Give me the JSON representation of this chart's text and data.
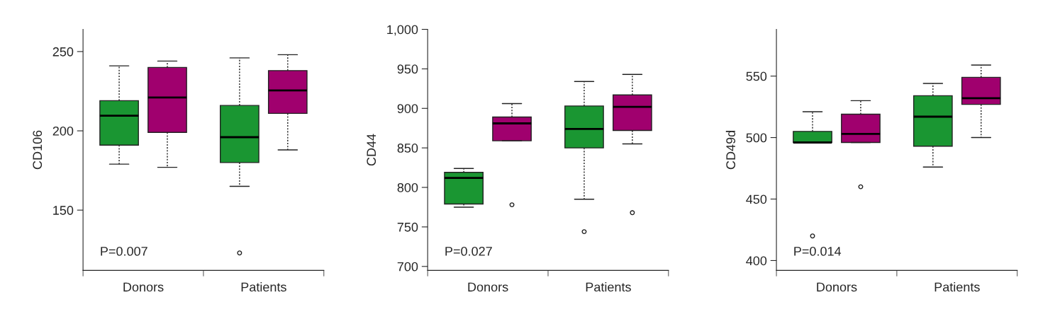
{
  "chart_data": [
    {
      "type": "box",
      "ylabel": "CD106",
      "categories": [
        "Donors",
        "Patients"
      ],
      "ylim": [
        112,
        264
      ],
      "yticks": [
        150,
        200,
        250
      ],
      "annotations": [
        "P=0.007"
      ],
      "legend": false,
      "grid": false,
      "series": [
        {
          "color": "#1a9632",
          "boxes": [
            {
              "low": 179,
              "q1": 191,
              "median": 209.5,
              "q3": 219,
              "high": 241
            },
            {
              "low": 165,
              "q1": 180,
              "median": 196,
              "q3": 216,
              "high": 246,
              "outliers": [
                123
              ]
            }
          ]
        },
        {
          "color": "#a0006e",
          "boxes": [
            {
              "low": 177,
              "q1": 199,
              "median": 221,
              "q3": 240,
              "high": 244
            },
            {
              "low": 188,
              "q1": 211,
              "median": 225.5,
              "q3": 238,
              "high": 248
            }
          ]
        }
      ]
    },
    {
      "type": "box",
      "ylabel": "CD44",
      "categories": [
        "Donors",
        "Patients"
      ],
      "ylim": [
        695,
        1000
      ],
      "yticks": [
        {
          "value": 700,
          "label": "700"
        },
        {
          "value": 750,
          "label": "750"
        },
        {
          "value": 800,
          "label": "800"
        },
        {
          "value": 850,
          "label": "850"
        },
        {
          "value": 900,
          "label": "900"
        },
        {
          "value": 950,
          "label": "950"
        },
        {
          "value": 1000,
          "label": "1,000"
        }
      ],
      "annotations": [
        "P=0.027"
      ],
      "legend": false,
      "grid": false,
      "series": [
        {
          "color": "#1a9632",
          "boxes": [
            {
              "low": 775,
              "q1": 779,
              "median": 812,
              "q3": 819,
              "high": 824
            },
            {
              "low": 785,
              "q1": 850,
              "median": 874,
              "q3": 903,
              "high": 934,
              "outliers": [
                744
              ]
            }
          ]
        },
        {
          "color": "#a0006e",
          "boxes": [
            {
              "low": 859,
              "q1": 859,
              "median": 881,
              "q3": 889,
              "high": 906,
              "outliers": [
                778
              ]
            },
            {
              "low": 855,
              "q1": 872,
              "median": 902,
              "q3": 917,
              "high": 943,
              "outliers": [
                768
              ]
            }
          ]
        }
      ]
    },
    {
      "type": "box",
      "ylabel": "CD49d",
      "categories": [
        "Donors",
        "Patients"
      ],
      "ylim": [
        392,
        588
      ],
      "yticks": [
        400,
        450,
        500,
        550
      ],
      "annotations": [
        "P=0.014"
      ],
      "legend": false,
      "grid": false,
      "series": [
        {
          "color": "#1a9632",
          "boxes": [
            {
              "low": 496,
              "q1": 496,
              "median": 496,
              "q3": 505,
              "high": 521,
              "outliers": [
                420
              ]
            },
            {
              "low": 476,
              "q1": 493,
              "median": 517,
              "q3": 534,
              "high": 544
            }
          ]
        },
        {
          "color": "#a0006e",
          "boxes": [
            {
              "low": 496,
              "q1": 496,
              "median": 503,
              "q3": 519,
              "high": 530,
              "outliers": [
                460
              ]
            },
            {
              "low": 500,
              "q1": 527,
              "median": 532,
              "q3": 549,
              "high": 559
            }
          ]
        }
      ]
    }
  ]
}
